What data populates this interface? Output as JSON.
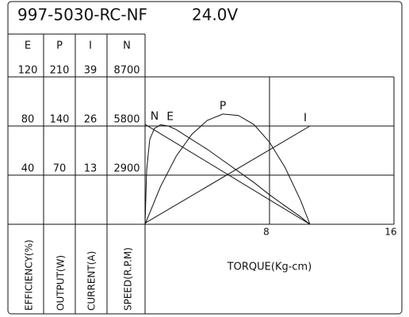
{
  "chart_data": {
    "type": "line",
    "title": "997-5030-RC-NF",
    "subtitle": "24.0V",
    "x_label": "TORQUE(Kg-cm)",
    "xlim": [
      0,
      16
    ],
    "xticks": [
      8,
      16
    ],
    "grid": true,
    "series": [
      {
        "name": "E",
        "axis_label": "EFFICIENCY(%)",
        "color": "#111111",
        "ylim": [
          0,
          120
        ],
        "yticks": [
          40,
          80,
          120
        ],
        "x": [
          0,
          0.1,
          0.3,
          0.6,
          1,
          1.5,
          2,
          3,
          4,
          5,
          6,
          7,
          8,
          9,
          10,
          10.6
        ],
        "values": [
          0,
          44,
          69,
          78,
          81,
          80,
          77,
          69,
          61,
          52,
          43,
          34,
          24,
          15,
          6,
          0
        ]
      },
      {
        "name": "P",
        "axis_label": "OUTPUT(W)",
        "color": "#111111",
        "ylim": [
          0,
          210
        ],
        "yticks": [
          70,
          140,
          210
        ],
        "x": [
          0,
          1,
          2,
          3,
          4,
          5,
          6,
          7,
          8,
          9,
          10,
          10.6
        ],
        "values": [
          0,
          54,
          97,
          128,
          148,
          157,
          155,
          142,
          117,
          81,
          34,
          0
        ]
      },
      {
        "name": "I",
        "axis_label": "CURRENT(A)",
        "color": "#111111",
        "ylim": [
          0,
          39
        ],
        "yticks": [
          13,
          26,
          39
        ],
        "x": [
          0,
          10.6
        ],
        "values": [
          0.3,
          26
        ]
      },
      {
        "name": "N",
        "axis_label": "SPEED(R.P.M)",
        "color": "#111111",
        "ylim": [
          0,
          8700
        ],
        "yticks": [
          2900,
          5800,
          8700
        ],
        "x": [
          0,
          10.6
        ],
        "values": [
          5900,
          0
        ]
      }
    ]
  }
}
